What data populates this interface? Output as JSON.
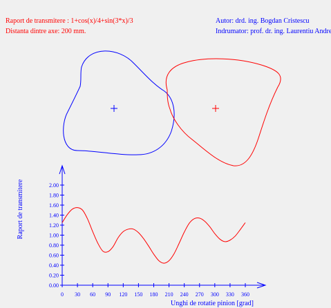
{
  "header": {
    "ratio_formula": "Raport de transmitere : 1+cos(x)/4+sin(3*x)/3",
    "axis_distance": "Distanta dintre axe: 200 mm.",
    "author": "Autor: drd. ing. Bogdan Cristescu",
    "advisor": "Indrumator: prof. dr. ing. Laurentiu Andrei"
  },
  "colors": {
    "red": "#ff0000",
    "blue": "#0000ff",
    "background": "#f0f0f0"
  },
  "chart_data": {
    "type": "line",
    "title": "",
    "xlabel": "Unghi de rotatie pinion [grad]",
    "ylabel": "Raport de transmitere",
    "xlim": [
      0,
      360
    ],
    "ylim": [
      0,
      2.0
    ],
    "xticks": [
      0,
      30,
      60,
      90,
      120,
      150,
      180,
      210,
      240,
      270,
      300,
      330,
      360
    ],
    "yticks": [
      0.0,
      0.2,
      0.4,
      0.6,
      0.8,
      1.0,
      1.2,
      1.4,
      1.6,
      1.8,
      2.0
    ],
    "xtick_labels": [
      "0",
      "30",
      "60",
      "90",
      "120",
      "150",
      "180",
      "210",
      "240",
      "270",
      "300",
      "330",
      "360"
    ],
    "ytick_labels": [
      "0.00",
      "0.20",
      "0.40",
      "0.60",
      "0.80",
      "1.00",
      "1.20",
      "1.40",
      "1.60",
      "1.80",
      "2.00"
    ],
    "grid": false,
    "series": [
      {
        "x": [
          0,
          10,
          20,
          30,
          40,
          50,
          60,
          70,
          80,
          90,
          100,
          110,
          120,
          130,
          140,
          150,
          160,
          170,
          180,
          190,
          200,
          210,
          220,
          230,
          240,
          250,
          260,
          270,
          280,
          290,
          300,
          310,
          320,
          330,
          340,
          350,
          360
        ],
        "values": [
          1.25,
          1.41,
          1.52,
          1.55,
          1.5,
          1.32,
          1.07,
          0.84,
          0.68,
          0.67,
          0.77,
          0.95,
          1.07,
          1.12,
          1.12,
          1.05,
          0.93,
          0.78,
          0.62,
          0.49,
          0.44,
          0.49,
          0.63,
          0.84,
          1.06,
          1.24,
          1.33,
          1.34,
          1.28,
          1.17,
          1.03,
          0.92,
          0.87,
          0.9,
          0.98,
          1.11,
          1.25
        ]
      }
    ]
  },
  "gears": {
    "pinion_color": "#0000ff",
    "wheel_color": "#ff0000"
  }
}
